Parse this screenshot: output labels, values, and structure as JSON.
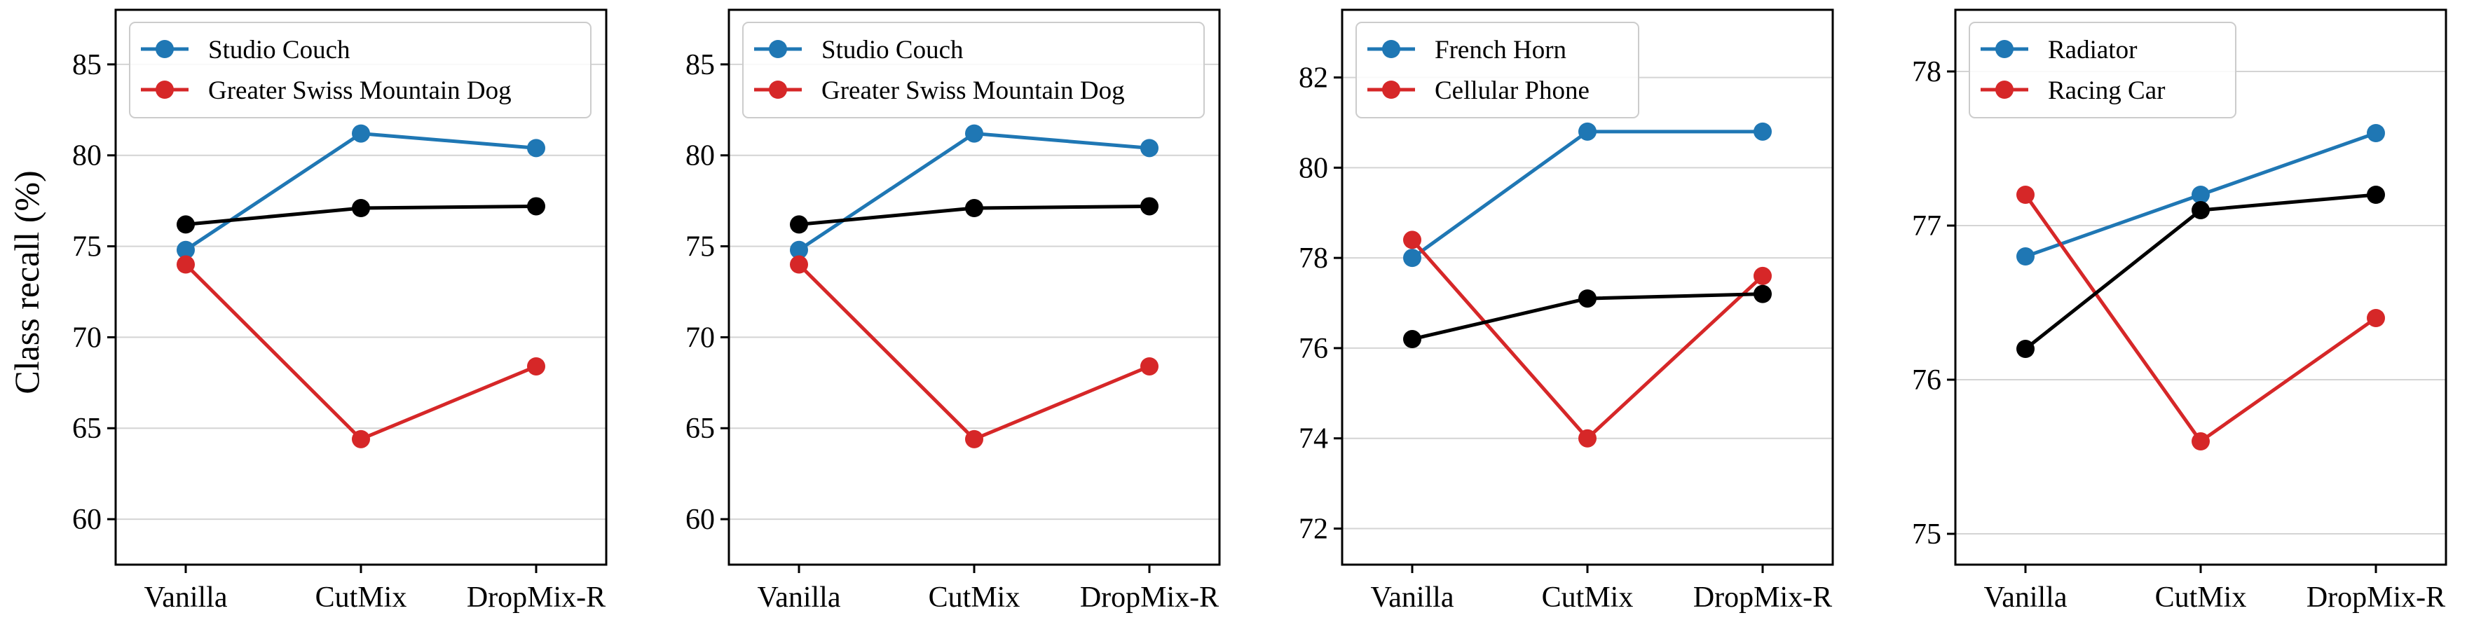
{
  "figure": {
    "ylabel": "Class recall (%)"
  },
  "chart_data": [
    {
      "type": "line",
      "categories": [
        "Vanilla",
        "CutMix",
        "DropMix-R"
      ],
      "ylim": [
        57.5,
        88
      ],
      "yticks": [
        60,
        65,
        70,
        75,
        80,
        85
      ],
      "ytick_labels": [
        "60",
        "65",
        "70",
        "75",
        "80",
        "85"
      ],
      "ylabel": "Class recall (%)",
      "grid": "horizontal",
      "legend_position": "top-left",
      "series": [
        {
          "name": "Studio Couch",
          "color": "#1f77b4",
          "values": [
            74.8,
            81.2,
            80.4
          ]
        },
        {
          "name": "Greater Swiss Mountain Dog",
          "color": "#d62728",
          "values": [
            74.0,
            64.4,
            68.4
          ]
        },
        {
          "color": "#000000",
          "values": [
            76.2,
            77.1,
            77.2
          ]
        }
      ]
    },
    {
      "type": "line",
      "categories": [
        "Vanilla",
        "CutMix",
        "DropMix-R"
      ],
      "ylim": [
        57.5,
        88
      ],
      "yticks": [
        60,
        65,
        70,
        75,
        80,
        85
      ],
      "ytick_labels": [
        "60",
        "65",
        "70",
        "75",
        "80",
        "85"
      ],
      "grid": "horizontal",
      "legend_position": "top-left",
      "series": [
        {
          "name": "Studio Couch",
          "color": "#1f77b4",
          "values": [
            74.8,
            81.2,
            80.4
          ]
        },
        {
          "name": "Greater Swiss Mountain Dog",
          "color": "#d62728",
          "values": [
            74.0,
            64.4,
            68.4
          ]
        },
        {
          "color": "#000000",
          "values": [
            76.2,
            77.1,
            77.2
          ]
        }
      ]
    },
    {
      "type": "line",
      "categories": [
        "Vanilla",
        "CutMix",
        "DropMix-R"
      ],
      "ylim": [
        71.2,
        83.5
      ],
      "yticks": [
        72,
        74,
        76,
        78,
        80,
        82
      ],
      "ytick_labels": [
        "72",
        "74",
        "76",
        "78",
        "80",
        "82"
      ],
      "grid": "horizontal",
      "legend_position": "top-left",
      "series": [
        {
          "name": "French Horn",
          "color": "#1f77b4",
          "values": [
            78.0,
            80.8,
            80.8
          ]
        },
        {
          "name": "Cellular Phone",
          "color": "#d62728",
          "values": [
            78.4,
            74.0,
            77.6
          ]
        },
        {
          "color": "#000000",
          "values": [
            76.2,
            77.1,
            77.2
          ]
        }
      ]
    },
    {
      "type": "line",
      "categories": [
        "Vanilla",
        "CutMix",
        "DropMix-R"
      ],
      "ylim": [
        74.8,
        78.4
      ],
      "yticks": [
        75,
        76,
        77,
        78
      ],
      "ytick_labels": [
        "75",
        "76",
        "77",
        "78"
      ],
      "grid": "horizontal",
      "legend_position": "top-left",
      "series": [
        {
          "name": "Radiator",
          "color": "#1f77b4",
          "values": [
            76.8,
            77.2,
            77.6
          ]
        },
        {
          "name": "Racing Car",
          "color": "#d62728",
          "values": [
            77.2,
            75.6,
            76.4
          ]
        },
        {
          "color": "#000000",
          "values": [
            76.2,
            77.1,
            77.2
          ]
        }
      ]
    }
  ]
}
